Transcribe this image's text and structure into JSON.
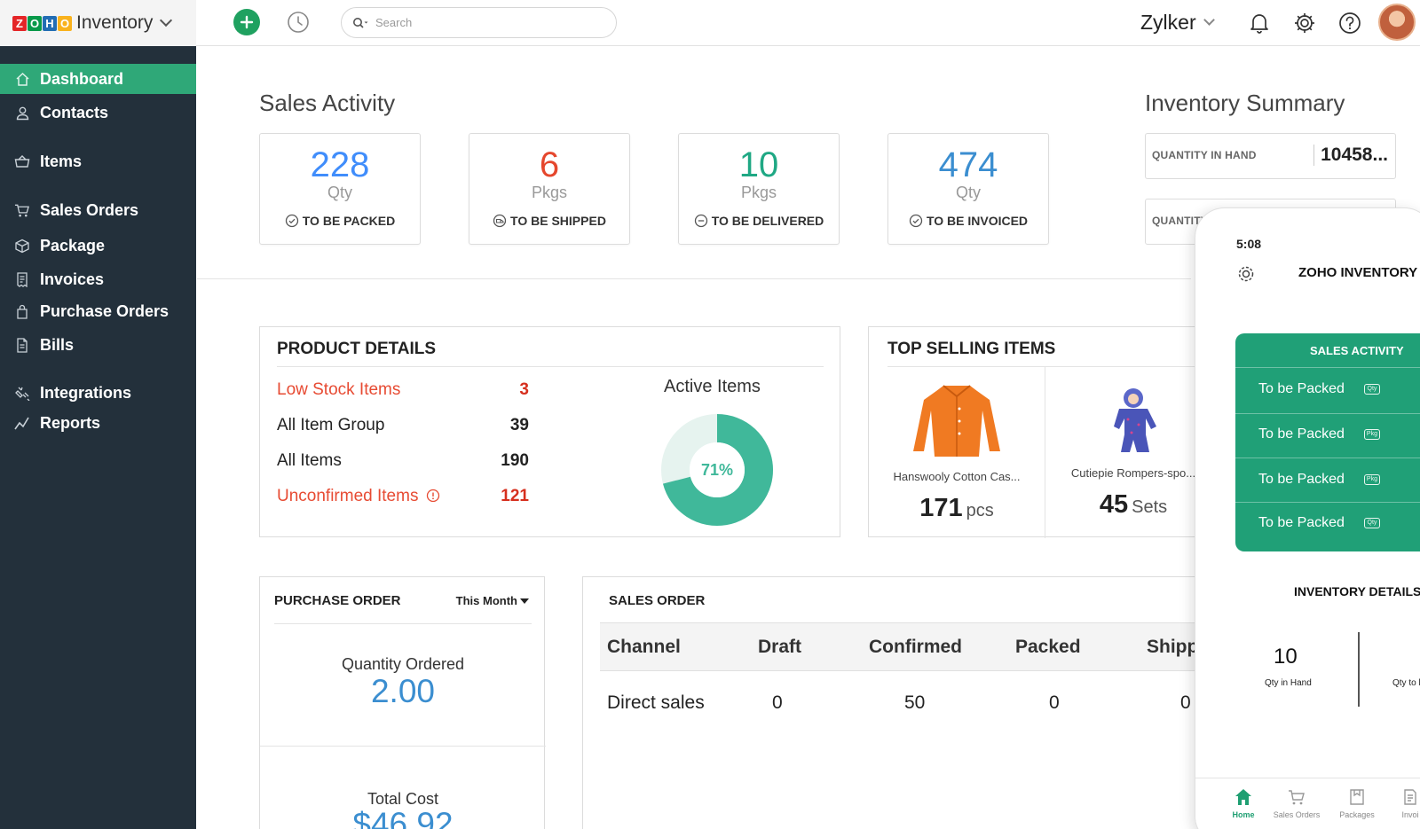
{
  "brand": {
    "logo_letters": [
      "Z",
      "O",
      "H",
      "O"
    ],
    "logo_colors": [
      "#e42527",
      "#089949",
      "#226db4",
      "#f9b21d"
    ],
    "app_name": "Inventory"
  },
  "header": {
    "search_placeholder": "Search",
    "org_name": "Zylker"
  },
  "sidebar": {
    "items": [
      {
        "label": "Dashboard",
        "icon": "home-icon",
        "active": true
      },
      {
        "label": "Contacts",
        "icon": "user-icon"
      },
      {
        "label": "Items",
        "icon": "basket-icon"
      },
      {
        "label": "Sales Orders",
        "icon": "cart-icon"
      },
      {
        "label": "Package",
        "icon": "box-icon"
      },
      {
        "label": "Invoices",
        "icon": "receipt-icon"
      },
      {
        "label": "Purchase Orders",
        "icon": "bag-icon"
      },
      {
        "label": "Bills",
        "icon": "document-icon"
      },
      {
        "label": "Integrations",
        "icon": "plug-icon"
      },
      {
        "label": "Reports",
        "icon": "chart-line-icon"
      }
    ]
  },
  "sales_activity": {
    "title": "Sales Activity",
    "cards": [
      {
        "value": "228",
        "unit": "Qty",
        "label": "TO BE PACKED",
        "color": "#408dfb"
      },
      {
        "value": "6",
        "unit": "Pkgs",
        "label": "TO BE SHIPPED",
        "color": "#e5472d"
      },
      {
        "value": "10",
        "unit": "Pkgs",
        "label": "TO BE DELIVERED",
        "color": "#1fa884"
      },
      {
        "value": "474",
        "unit": "Qty",
        "label": "TO BE INVOICED",
        "color": "#3b8ed0"
      }
    ]
  },
  "inventory_summary": {
    "title": "Inventory Summary",
    "rows": [
      {
        "label": "QUANTITY IN HAND",
        "value": "10458..."
      },
      {
        "label": "QUANTITY",
        "value": ""
      }
    ]
  },
  "product_details": {
    "title": "PRODUCT DETAILS",
    "rows": [
      {
        "label": "Low Stock Items",
        "value": "3"
      },
      {
        "label": "All Item Group",
        "value": "39"
      },
      {
        "label": "All Items",
        "value": "190"
      },
      {
        "label": "Unconfirmed Items",
        "value": "121"
      }
    ],
    "active_items_title": "Active Items",
    "active_percent_label": "71%",
    "active_fraction": 0.71,
    "donut_color": "#40b89a",
    "donut_rest_color": "#e6f3ef"
  },
  "top_selling": {
    "title": "TOP SELLING ITEMS",
    "items": [
      {
        "name": "Hanswooly Cotton Cas...",
        "qty": "171",
        "unit": "pcs"
      },
      {
        "name": "Cutiepie Rompers-spo...",
        "qty": "45",
        "unit": "Sets"
      }
    ]
  },
  "purchase_order": {
    "title": "PURCHASE ORDER",
    "period": "This Month",
    "qty_label": "Quantity Ordered",
    "qty_value": "2.00",
    "cost_label": "Total Cost",
    "cost_value": "$46.92"
  },
  "sales_order": {
    "title": "SALES ORDER",
    "columns": [
      "Channel",
      "Draft",
      "Confirmed",
      "Packed",
      "Shipp"
    ],
    "rows": [
      [
        "Direct sales",
        "0",
        "50",
        "0",
        "0"
      ]
    ]
  },
  "phone": {
    "time": "5:08",
    "title": "ZOHO INVENTORY",
    "sales_title": "SALES ACTIVITY",
    "sales_rows": [
      {
        "label": "To be Packed",
        "tag": "Qty"
      },
      {
        "label": "To be Packed",
        "tag": "Pkg"
      },
      {
        "label": "To be Packed",
        "tag": "Pkg"
      },
      {
        "label": "To be Packed",
        "tag": "Qty"
      }
    ],
    "inv_title": "INVENTORY DETAILS",
    "inv_value": "10",
    "inv_label": "Qty in Hand",
    "inv_label2": "Qty to b",
    "tabs": [
      "Home",
      "Sales Orders",
      "Packages",
      "Invoi"
    ]
  }
}
